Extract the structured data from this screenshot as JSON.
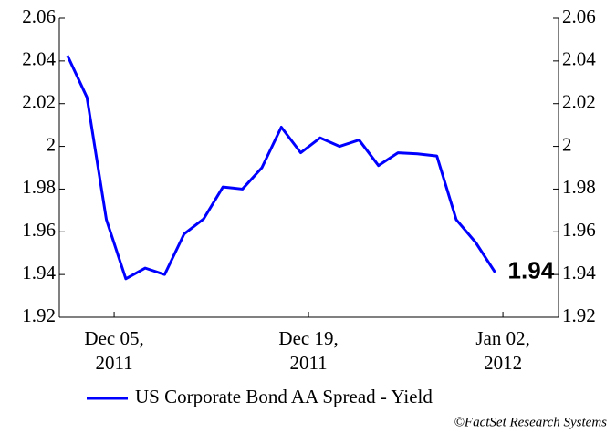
{
  "chart_data": {
    "type": "line",
    "x": [
      0,
      1,
      2,
      3,
      4,
      5,
      6,
      7,
      8,
      9,
      10,
      11,
      12,
      13,
      14,
      15,
      16,
      17,
      18,
      19,
      20,
      21,
      22
    ],
    "xlim": [
      -0.42,
      25.26
    ],
    "xticks": [
      {
        "value": 2.4,
        "label": "Dec 05,\n2011"
      },
      {
        "value": 12.4,
        "label": "Dec 19,\n2011"
      },
      {
        "value": 22.4,
        "label": "Jan 02,\n2012"
      }
    ],
    "series": [
      {
        "name": "US Corporate Bond AA Spread - Yield",
        "color": "#0000ff",
        "values": [
          2.0425,
          2.023,
          1.9657,
          1.938,
          1.943,
          1.94,
          1.959,
          1.966,
          1.981,
          1.98,
          1.99,
          2.009,
          1.997,
          2.004,
          2.0,
          2.003,
          1.991,
          1.997,
          1.9965,
          1.9955,
          1.9657,
          1.955,
          1.941
        ],
        "value_labels": [
          null,
          null,
          null,
          null,
          null,
          null,
          null,
          null,
          null,
          null,
          null,
          null,
          null,
          null,
          null,
          null,
          null,
          null,
          null,
          null,
          null,
          null,
          "1.94"
        ]
      }
    ],
    "ylim": [
      1.92,
      2.06
    ],
    "yticks": [
      1.92,
      1.94,
      1.96,
      1.98,
      2,
      2.02,
      2.04,
      2.06
    ],
    "y2lim": [
      1.92,
      2.06
    ],
    "y2ticks": [
      1.92,
      1.94,
      1.96,
      1.98,
      2,
      2.02,
      2.04,
      2.06
    ],
    "legend": "bottom",
    "credit": "©FactSet Research Systems"
  }
}
